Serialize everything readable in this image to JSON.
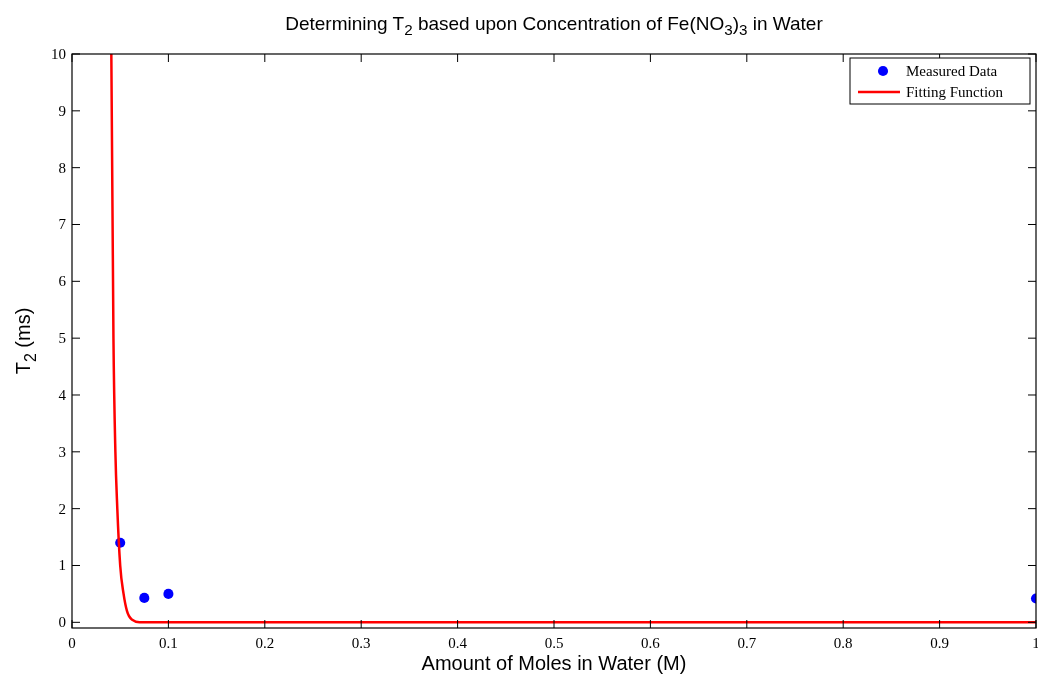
{
  "chart_data": {
    "type": "scatter",
    "title": "Determining T$_{2}$ based upon Concentration of Fe(NO$_{3}$)$_{3}$ in Water",
    "xlabel": "Amount of Moles in Water (M)",
    "ylabel": "T$_{2}$ (ms)",
    "xlim": [
      0,
      1
    ],
    "xticks": [
      0,
      0.1,
      0.2,
      0.3,
      0.4,
      0.5,
      0.6,
      0.7,
      0.8,
      0.9,
      1
    ],
    "ylim": [
      -0.1,
      10
    ],
    "yticks": [
      0,
      1,
      2,
      3,
      4,
      5,
      6,
      7,
      8,
      9,
      10
    ],
    "legend": "top right",
    "grid": false,
    "series": [
      {
        "name": "Measured Data",
        "marker": "circle",
        "color": "#0000ff",
        "x": [
          0.05,
          0.075,
          0.1,
          1.0
        ],
        "values": [
          1.4,
          0.43,
          0.5,
          0.42
        ]
      },
      {
        "name": "Fitting Function",
        "type": "line",
        "marker": "none",
        "line_style": "solid",
        "color": "#ff0000",
        "x": [
          0.0408,
          0.043,
          0.045,
          0.047,
          0.05,
          0.0535,
          0.057,
          0.062,
          0.07,
          0.1,
          0.5,
          1.0
        ],
        "values": [
          10,
          5,
          3,
          2,
          1,
          0.5,
          0.2,
          0.05,
          0,
          0,
          0,
          0
        ]
      }
    ]
  }
}
